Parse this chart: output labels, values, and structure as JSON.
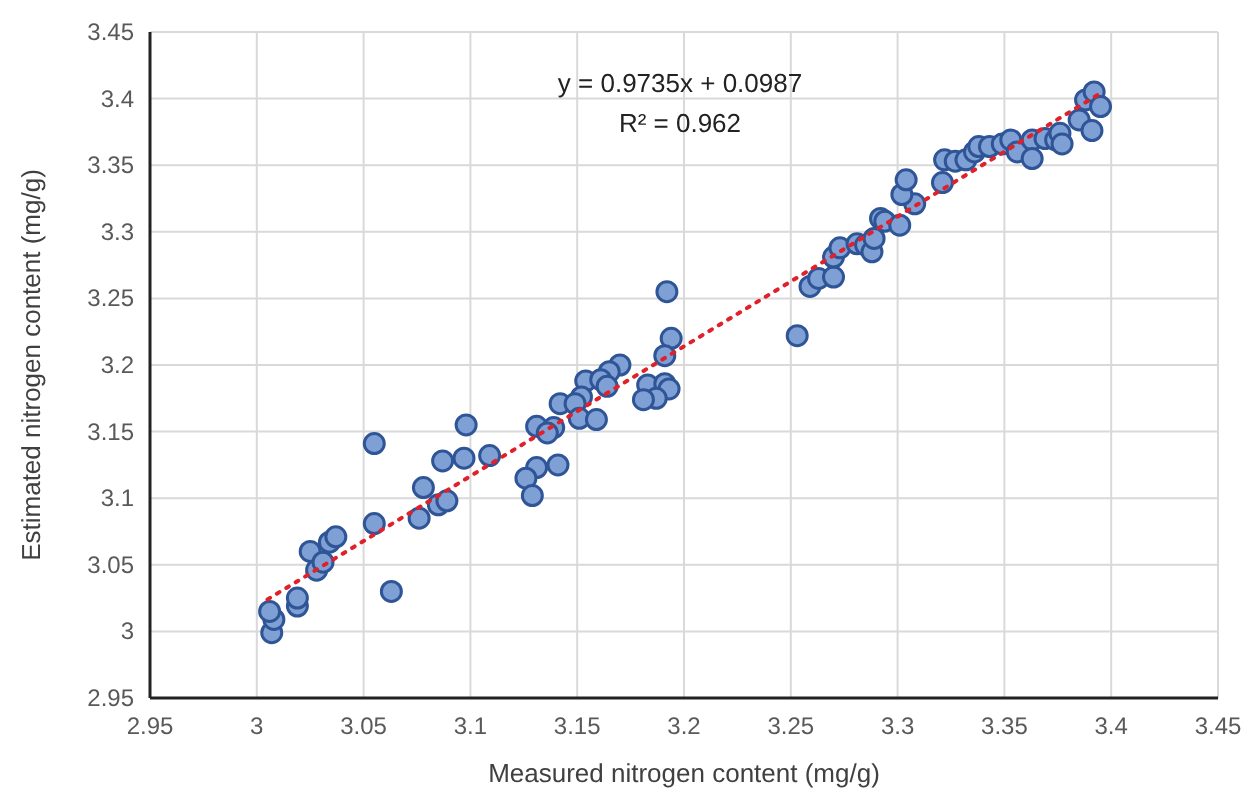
{
  "chart_data": {
    "type": "scatter",
    "xlabel": "Measured nitrogen content (mg/g)",
    "ylabel": "Estimated nitrogen content (mg/g)",
    "xlim": [
      2.95,
      3.45
    ],
    "xticks": [
      2.95,
      3,
      3.05,
      3.1,
      3.15,
      3.2,
      3.25,
      3.3,
      3.35,
      3.4,
      3.45
    ],
    "ylim": [
      2.95,
      3.45
    ],
    "yticks": [
      2.95,
      3,
      3.05,
      3.1,
      3.15,
      3.2,
      3.25,
      3.3,
      3.35,
      3.4,
      3.45
    ],
    "grid": true,
    "annotations": [
      "y = 0.9735x + 0.0987",
      "R² = 0.962"
    ],
    "series": [
      {
        "color": "#7ea0d4",
        "marker": "circle",
        "x": [
          3.007,
          3.008,
          3.006,
          3.019,
          3.019,
          3.025,
          3.028,
          3.031,
          3.034,
          3.037,
          3.055,
          3.055,
          3.063,
          3.076,
          3.078,
          3.085,
          3.089,
          3.087,
          3.097,
          3.098,
          3.109,
          3.192,
          3.194,
          3.191,
          3.17,
          3.165,
          3.154,
          3.161,
          3.164,
          3.152,
          3.142,
          3.149,
          3.151,
          3.159,
          3.183,
          3.191,
          3.193,
          3.187,
          3.181,
          3.131,
          3.139,
          3.136,
          3.131,
          3.141,
          3.126,
          3.129,
          3.253,
          3.259,
          3.263,
          3.27,
          3.27,
          3.273,
          3.281,
          3.285,
          3.288,
          3.289,
          3.292,
          3.294,
          3.301,
          3.308,
          3.302,
          3.304,
          3.321,
          3.322,
          3.327,
          3.332,
          3.336,
          3.338,
          3.343,
          3.349,
          3.353,
          3.356,
          3.363,
          3.363,
          3.369,
          3.374,
          3.376,
          3.377,
          3.385,
          3.391,
          3.388,
          3.392,
          3.395
        ],
        "values": [
          2.999,
          3.009,
          3.015,
          3.019,
          3.025,
          3.06,
          3.046,
          3.052,
          3.067,
          3.071,
          3.141,
          3.081,
          3.03,
          3.085,
          3.108,
          3.095,
          3.098,
          3.128,
          3.13,
          3.155,
          3.132,
          3.255,
          3.22,
          3.207,
          3.2,
          3.195,
          3.188,
          3.189,
          3.184,
          3.176,
          3.171,
          3.171,
          3.16,
          3.159,
          3.185,
          3.186,
          3.182,
          3.175,
          3.174,
          3.154,
          3.153,
          3.149,
          3.123,
          3.125,
          3.115,
          3.102,
          3.222,
          3.259,
          3.265,
          3.266,
          3.281,
          3.288,
          3.291,
          3.29,
          3.285,
          3.295,
          3.31,
          3.308,
          3.305,
          3.321,
          3.328,
          3.339,
          3.337,
          3.354,
          3.353,
          3.354,
          3.36,
          3.364,
          3.364,
          3.366,
          3.369,
          3.36,
          3.369,
          3.355,
          3.37,
          3.369,
          3.374,
          3.366,
          3.384,
          3.376,
          3.399,
          3.405,
          3.394
        ]
      },
      {
        "type": "line",
        "color": "#e0202a",
        "line_style": "dotted",
        "x": [
          3.005,
          3.395
        ],
        "values": [
          3.024,
          3.404
        ]
      }
    ]
  }
}
